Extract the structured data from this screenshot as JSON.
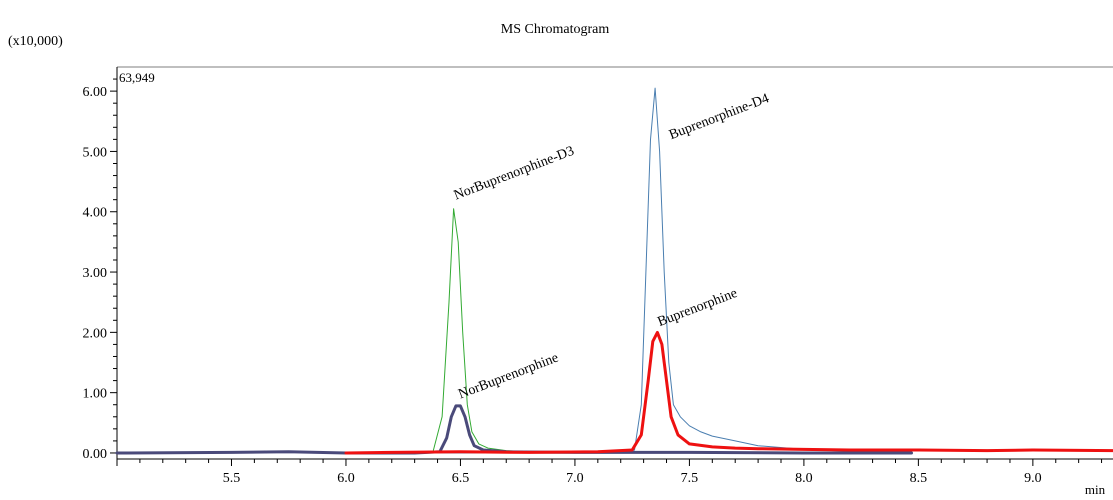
{
  "chart_data": {
    "type": "line",
    "title": "MS Chromatogram",
    "y_multiplier_label": "(x10,000)",
    "max_intensity_label": "63,949",
    "xlabel": "min",
    "ylabel": "",
    "xlim": [
      5.0,
      9.35
    ],
    "ylim": [
      -0.1,
      6.4
    ],
    "x_ticks": [
      5.5,
      6.0,
      6.5,
      7.0,
      7.5,
      8.0,
      8.5,
      9.0
    ],
    "x_tick_labels": [
      "5.5",
      "6.0",
      "6.5",
      "7.0",
      "7.5",
      "8.0",
      "8.5",
      "9.0"
    ],
    "y_ticks": [
      0,
      1,
      2,
      3,
      4,
      5,
      6
    ],
    "y_tick_labels": [
      "0.00",
      "1.00",
      "2.00",
      "3.00",
      "4.00",
      "5.00",
      "6.00"
    ],
    "grid": false,
    "legend": "none",
    "series": [
      {
        "color": "#33aa33",
        "linewidth": 1,
        "x": [
          6.0,
          6.3,
          6.38,
          6.42,
          6.45,
          6.47,
          6.49,
          6.51,
          6.53,
          6.55,
          6.58,
          6.62,
          6.7,
          6.8,
          7.0,
          7.5,
          8.0,
          8.47
        ],
        "y": [
          0.0,
          0.0,
          0.02,
          0.6,
          2.5,
          4.05,
          3.5,
          2.0,
          0.8,
          0.35,
          0.15,
          0.08,
          0.04,
          0.02,
          0.01,
          0.0,
          0.0,
          0.0
        ]
      },
      {
        "color": "#4a7eb0",
        "linewidth": 1,
        "x": [
          6.0,
          7.2,
          7.26,
          7.29,
          7.31,
          7.33,
          7.35,
          7.37,
          7.39,
          7.41,
          7.43,
          7.46,
          7.5,
          7.55,
          7.6,
          7.7,
          7.8,
          8.0,
          8.2,
          8.47
        ],
        "y": [
          0.0,
          0.0,
          0.05,
          0.8,
          3.0,
          5.2,
          6.05,
          5.0,
          3.0,
          1.5,
          0.8,
          0.6,
          0.45,
          0.35,
          0.28,
          0.2,
          0.12,
          0.06,
          0.03,
          0.02
        ]
      },
      {
        "color": "#4a4a7a",
        "linewidth": 3,
        "x": [
          5.0,
          5.5,
          5.75,
          6.0,
          6.3,
          6.41,
          6.44,
          6.46,
          6.48,
          6.5,
          6.52,
          6.54,
          6.56,
          6.6,
          6.7,
          7.0,
          7.5,
          8.0,
          8.47
        ],
        "y": [
          0.0,
          0.01,
          0.02,
          0.0,
          0.0,
          0.02,
          0.25,
          0.6,
          0.78,
          0.78,
          0.6,
          0.3,
          0.12,
          0.05,
          0.02,
          0.01,
          0.01,
          0.0,
          0.0
        ]
      },
      {
        "color": "#ee1111",
        "linewidth": 3,
        "x": [
          6.0,
          6.2,
          6.5,
          6.8,
          7.1,
          7.25,
          7.29,
          7.32,
          7.34,
          7.36,
          7.38,
          7.4,
          7.42,
          7.45,
          7.5,
          7.6,
          7.7,
          7.8,
          8.0,
          8.2,
          8.5,
          8.8,
          9.0,
          9.35
        ],
        "y": [
          0.0,
          0.01,
          0.02,
          0.01,
          0.02,
          0.05,
          0.3,
          1.2,
          1.85,
          2.0,
          1.8,
          1.2,
          0.6,
          0.3,
          0.15,
          0.1,
          0.08,
          0.07,
          0.06,
          0.05,
          0.05,
          0.04,
          0.05,
          0.04
        ]
      }
    ],
    "annotations": [
      {
        "text": "NorBuprenorphine-D3",
        "x": 6.48,
        "y": 4.2
      },
      {
        "text": "NorBuprenorphine",
        "x": 6.5,
        "y": 0.9
      },
      {
        "text": "Buprenorphine-D4",
        "x": 7.42,
        "y": 5.2
      },
      {
        "text": "Buprenorphine",
        "x": 7.37,
        "y": 2.1
      }
    ]
  }
}
